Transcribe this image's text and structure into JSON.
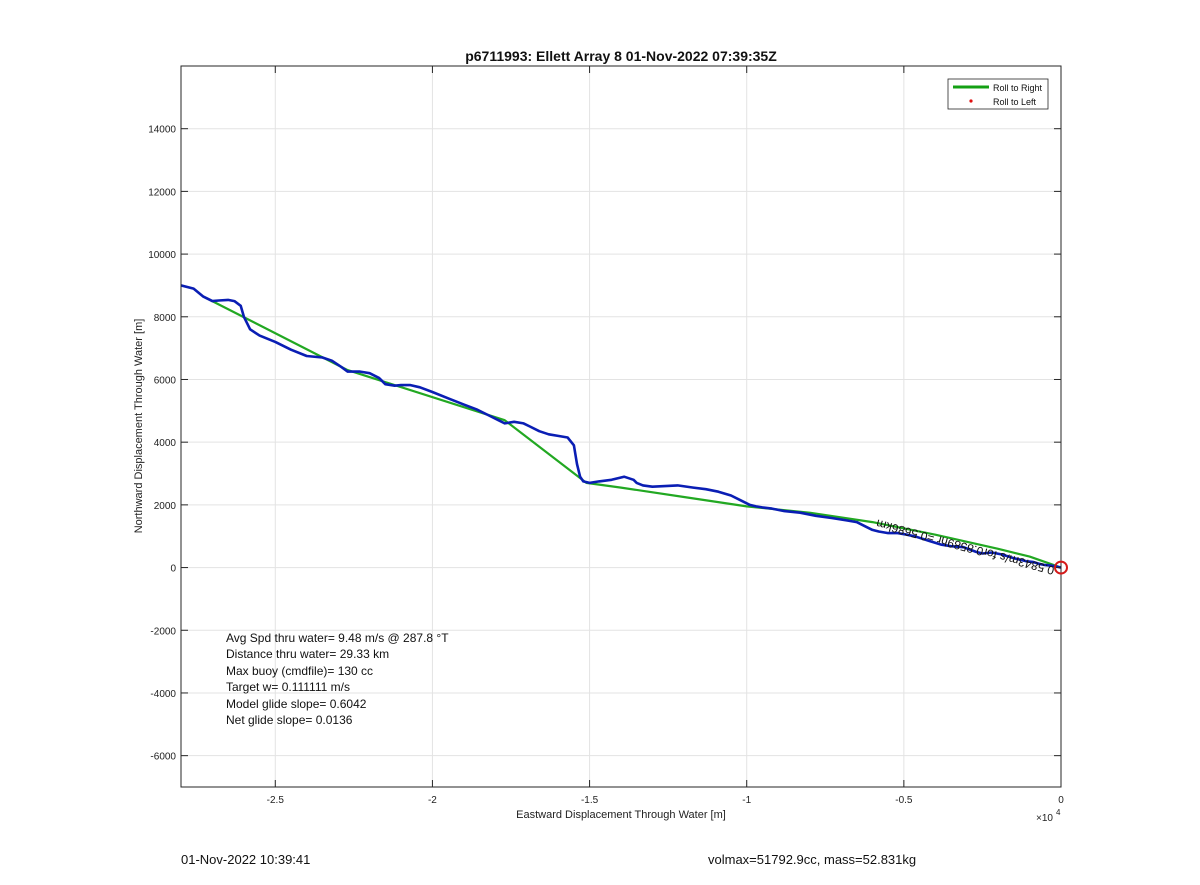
{
  "chart_data": {
    "type": "line",
    "title": "p6711993: Ellett Array 8 01-Nov-2022 07:39:35Z",
    "xlabel": "Eastward Displacement Through Water [m]",
    "ylabel": "Northward Displacement Through Water [m]",
    "x_exponent_label": "×10",
    "x_exponent_power": "4",
    "xlim": [
      -28000,
      0
    ],
    "ylim": [
      -7000,
      16000
    ],
    "x_ticks": [
      -25000,
      -20000,
      -15000,
      -10000,
      -5000,
      0
    ],
    "x_tick_labels": [
      "-2.5",
      "-2",
      "-1.5",
      "-1",
      "-0.5",
      "0"
    ],
    "y_ticks": [
      -6000,
      -4000,
      -2000,
      0,
      2000,
      4000,
      6000,
      8000,
      10000,
      12000,
      14000
    ],
    "y_tick_labels": [
      "-6000",
      "-4000",
      "-2000",
      "0",
      "2000",
      "4000",
      "6000",
      "8000",
      "10000",
      "12000",
      "14000"
    ],
    "grid": true,
    "legend_position": "top-right",
    "legend": [
      {
        "label": "Roll to Right",
        "color": "#14a014",
        "marker": "line"
      },
      {
        "label": "Roll to Left",
        "color": "#e01010",
        "marker": "dot"
      }
    ],
    "series": [
      {
        "name": "Roll to Right",
        "color": "#22a822",
        "x": [
          -27200,
          -22700,
          -17700,
          -15100,
          -14000,
          -12000,
          -10000,
          -8000,
          -6000,
          -4000,
          -2000,
          -1000,
          0
        ],
        "y": [
          8600,
          6300,
          4700,
          2700,
          2550,
          2250,
          1950,
          1750,
          1450,
          1050,
          600,
          350,
          0
        ]
      },
      {
        "name": "",
        "color": "#0a1eb4",
        "x": [
          -28000,
          -27600,
          -27300,
          -27000,
          -26800,
          -26500,
          -26300,
          -26100,
          -26000,
          -25800,
          -25500,
          -25000,
          -24500,
          -24000,
          -23500,
          -23200,
          -22900,
          -22700,
          -22300,
          -22000,
          -21700,
          -21500,
          -21200,
          -21000,
          -20700,
          -20400,
          -20000,
          -19500,
          -19000,
          -18600,
          -18200,
          -17900,
          -17700,
          -17400,
          -17100,
          -16900,
          -16600,
          -16300,
          -16000,
          -15700,
          -15500,
          -15400,
          -15300,
          -15200,
          -15000,
          -14700,
          -14300,
          -13900,
          -13600,
          -13500,
          -13300,
          -13000,
          -12600,
          -12200,
          -11700,
          -11300,
          -10900,
          -10500,
          -10200,
          -9900,
          -9700,
          -9500,
          -9200,
          -8800,
          -8300,
          -7800,
          -7300,
          -6800,
          -6500,
          -6200,
          -6000,
          -5800,
          -5500,
          -5200,
          -4900,
          -4600,
          -4200,
          -3800,
          -3500,
          -3100,
          -2700,
          -2500,
          -2200,
          -1900,
          -1700,
          -1500,
          -1300,
          -1100,
          -900,
          -700,
          -500,
          -300,
          -100,
          0
        ],
        "y": [
          9000,
          8900,
          8650,
          8500,
          8520,
          8540,
          8500,
          8350,
          8000,
          7600,
          7400,
          7200,
          6950,
          6750,
          6700,
          6600,
          6400,
          6250,
          6250,
          6200,
          6050,
          5850,
          5800,
          5820,
          5820,
          5750,
          5600,
          5400,
          5200,
          5050,
          4850,
          4700,
          4600,
          4650,
          4600,
          4500,
          4350,
          4250,
          4200,
          4150,
          3900,
          3300,
          2900,
          2750,
          2700,
          2750,
          2800,
          2900,
          2800,
          2700,
          2620,
          2580,
          2600,
          2620,
          2550,
          2500,
          2420,
          2300,
          2150,
          2000,
          1950,
          1920,
          1880,
          1800,
          1750,
          1650,
          1580,
          1500,
          1450,
          1300,
          1200,
          1150,
          1100,
          1100,
          1050,
          980,
          850,
          730,
          680,
          650,
          500,
          450,
          480,
          420,
          360,
          300,
          250,
          200,
          180,
          120,
          80,
          60,
          20,
          0
        ]
      }
    ],
    "stats": [
      "Avg Spd thru water=  9.48 m/s @ 287.8 °T",
      "Distance thru water= 29.33 km",
      "Max buoy (cmdfile)= 130 cc",
      "Target w= 0.111111 m/s",
      "Model glide slope= 0.6042",
      "Net glide slope= 0.0136"
    ],
    "annotation": "0.5843m/s for0.8589hr =0.5686km",
    "end_marker_color": "#d41a1a"
  },
  "footer": {
    "timestamp": "01-Nov-2022 10:39:41",
    "mass_info": "volmax=51792.9cc, mass=52.831kg"
  }
}
